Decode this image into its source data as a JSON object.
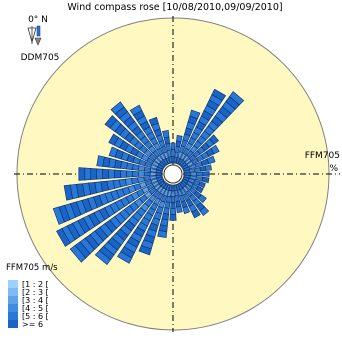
{
  "chart_data": {
    "type": "wind-rose",
    "title": "Wind compass rose [10/08/2010,09/09/2010]",
    "north_label": "0° N",
    "direction_variable": "DDM705",
    "radial_variable": "FFM705",
    "radial_unit": "%",
    "legend_title": "FFM705 m/s",
    "legend": {
      "position": "bottom-left",
      "classes": [
        "[1 : 2 [",
        "[2 : 3 [",
        "[3 : 4 [",
        "[4 : 5 [",
        "[5 : 6 [",
        ">= 6"
      ],
      "colors": [
        "#9ed0ff",
        "#7fbaf4",
        "#5ea3ea",
        "#3f8ce0",
        "#2a78d6",
        "#1a64c6"
      ]
    },
    "colors": {
      "background": "#fff8c0",
      "circle_edge": "#808080",
      "crosshair": "#000000",
      "spike_fill": "#2878d8",
      "spike_edge": "#0c2c6c"
    },
    "direction_step_deg": 10,
    "sectors": [
      {
        "dir": 0,
        "value": 0.8
      },
      {
        "dir": 10,
        "value": 1.1
      },
      {
        "dir": 20,
        "value": 2.2
      },
      {
        "dir": 30,
        "value": 3.3
      },
      {
        "dir": 40,
        "value": 3.6
      },
      {
        "dir": 50,
        "value": 1.8
      },
      {
        "dir": 60,
        "value": 1.6
      },
      {
        "dir": 70,
        "value": 1.3
      },
      {
        "dir": 80,
        "value": 1.1
      },
      {
        "dir": 90,
        "value": 1.0
      },
      {
        "dir": 100,
        "value": 1.0
      },
      {
        "dir": 110,
        "value": 0.9
      },
      {
        "dir": 120,
        "value": 0.9
      },
      {
        "dir": 130,
        "value": 1.2
      },
      {
        "dir": 140,
        "value": 1.6
      },
      {
        "dir": 150,
        "value": 1.5
      },
      {
        "dir": 160,
        "value": 1.2
      },
      {
        "dir": 170,
        "value": 1.1
      },
      {
        "dir": 180,
        "value": 1.4
      },
      {
        "dir": 190,
        "value": 2.1
      },
      {
        "dir": 200,
        "value": 2.9
      },
      {
        "dir": 210,
        "value": 3.5
      },
      {
        "dir": 220,
        "value": 4.0
      },
      {
        "dir": 230,
        "value": 4.6
      },
      {
        "dir": 240,
        "value": 4.7
      },
      {
        "dir": 250,
        "value": 4.5
      },
      {
        "dir": 260,
        "value": 3.9
      },
      {
        "dir": 270,
        "value": 3.3
      },
      {
        "dir": 280,
        "value": 2.6
      },
      {
        "dir": 290,
        "value": 2.2
      },
      {
        "dir": 300,
        "value": 2.4
      },
      {
        "dir": 310,
        "value": 2.9
      },
      {
        "dir": 320,
        "value": 3.1
      },
      {
        "dir": 330,
        "value": 2.6
      },
      {
        "dir": 340,
        "value": 1.9
      },
      {
        "dir": 350,
        "value": 1.3
      }
    ],
    "r_max": 5.5,
    "grid": "crosshair",
    "icon": "wind-vane-icon"
  }
}
